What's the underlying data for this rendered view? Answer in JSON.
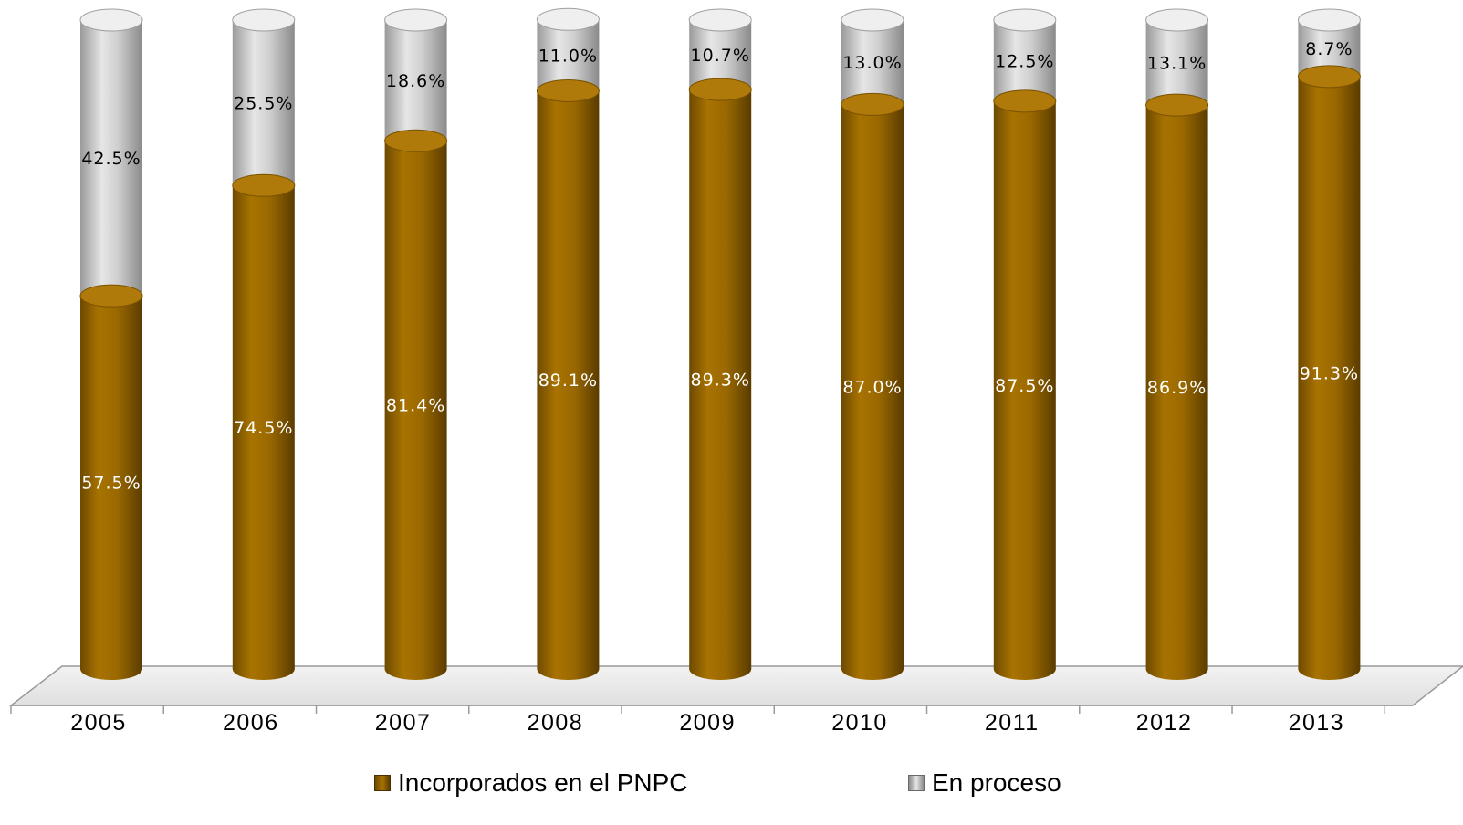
{
  "chart_data": {
    "type": "bar",
    "stacked": true,
    "categories": [
      "2005",
      "2006",
      "2007",
      "2008",
      "2009",
      "2010",
      "2011",
      "2012",
      "2013"
    ],
    "series": [
      {
        "name": "Incorporados en el PNPC",
        "values": [
          57.5,
          74.5,
          81.4,
          89.1,
          89.3,
          87.0,
          87.5,
          86.9,
          91.3
        ],
        "labels": [
          "57.5%",
          "74.5%",
          "81.4%",
          "89.1%",
          "89.3%",
          "87.0%",
          "87.5%",
          "86.9%",
          "91.3%"
        ],
        "color": "#9C6A00"
      },
      {
        "name": "En proceso",
        "values": [
          42.5,
          25.5,
          18.6,
          11.0,
          10.7,
          13.0,
          12.5,
          13.1,
          8.7
        ],
        "labels": [
          "42.5%",
          "25.5%",
          "18.6%",
          "11.0%",
          "10.7%",
          "13.0%",
          "12.5%",
          "13.1%",
          "8.7%"
        ],
        "color": "#BDBDBD"
      }
    ],
    "ylim": [
      0,
      100
    ],
    "legend_position": "bottom",
    "style": "3d-cylinder"
  },
  "legend": {
    "items": [
      {
        "label": "Incorporados en el PNPC",
        "color": "#9C6A00"
      },
      {
        "label": "En proceso",
        "color": "#BDBDBD"
      }
    ]
  }
}
